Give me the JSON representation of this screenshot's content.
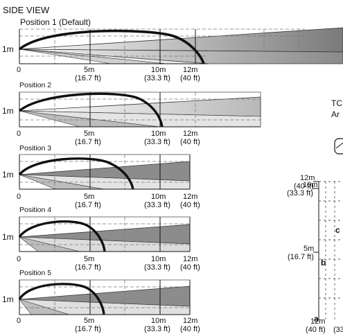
{
  "title": "SIDE VIEW",
  "positions": [
    {
      "label": "Position 1 (Default)"
    },
    {
      "label": "Position 2"
    },
    {
      "label": "Position 3"
    },
    {
      "label": "Position 4"
    },
    {
      "label": "Position 5"
    }
  ],
  "height_label": "1m",
  "distance_ticks": [
    {
      "m": "0",
      "ft": ""
    },
    {
      "m": "5m",
      "ft": "(16.7 ft)"
    },
    {
      "m": "10m",
      "ft": "(33.3 ft)"
    },
    {
      "m": "12m",
      "ft": "(40 ft)"
    }
  ],
  "top_view": {
    "title_fragment_1": "TC",
    "title_fragment_2": "Ar",
    "y_ticks": [
      {
        "m": "12m",
        "ft": "(40 ft)"
      },
      {
        "m": "10m",
        "ft": "(33.3 ft)"
      },
      {
        "m": "5m",
        "ft": "(16.7 ft)"
      }
    ],
    "zone_letters": [
      "c",
      "b",
      "a"
    ],
    "bottom_m": "12m",
    "bottom_ft_1": "(40 ft)",
    "bottom_ft_2": "(33"
  },
  "colors": {
    "beam_dark": "#8c8c8c",
    "beam_mid": "#b4b4b4",
    "beam_light": "#d6d6d6",
    "arc": "#111111",
    "dash": "#777777"
  }
}
